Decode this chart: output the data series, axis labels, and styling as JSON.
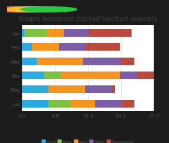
{
  "title": "Simple horizontal stacked barchart example",
  "categories": [
    "Jun",
    "May",
    "Apr",
    "Mar",
    "Feb",
    "Jan"
  ],
  "series": {
    "Jane": [
      5.5,
      5.5,
      4.5,
      3.0,
      2.0,
      0.5
    ],
    "John": [
      4.5,
      0.0,
      3.5,
      0.0,
      0.0,
      4.5
    ],
    "Axel": [
      5.0,
      7.5,
      12.0,
      9.5,
      5.5,
      3.5
    ],
    "Mary": [
      5.5,
      5.5,
      3.5,
      7.5,
      5.5,
      5.0
    ],
    "Samantha": [
      2.5,
      0.5,
      3.5,
      3.0,
      7.0,
      9.0
    ]
  },
  "colors": {
    "Jane": "#29ABE2",
    "John": "#7DC242",
    "Axel": "#F7941D",
    "Mary": "#7B5EA7",
    "Samantha": "#B94B3E"
  },
  "xlim": [
    0,
    27
  ],
  "xticks": [
    0.0,
    6.8,
    13.5,
    20.3,
    27.0
  ],
  "xtick_labels": [
    "0.0",
    "6.8",
    "13.5",
    "20.3",
    "27.0"
  ],
  "window_bg": "#1C1C1C",
  "titlebar_bg": "#E8E8E8",
  "content_bg": "#F5F5F5",
  "chart_bg": "#FFFFFF",
  "legend_order": [
    "Jane",
    "John",
    "Axel",
    "Mary",
    "Samantha"
  ],
  "title_fontsize": 6.5,
  "tick_fontsize": 5,
  "legend_fontsize": 4.5,
  "traffic_red": "#FF5F57",
  "traffic_yellow": "#FEBC2E",
  "traffic_green": "#28C840"
}
